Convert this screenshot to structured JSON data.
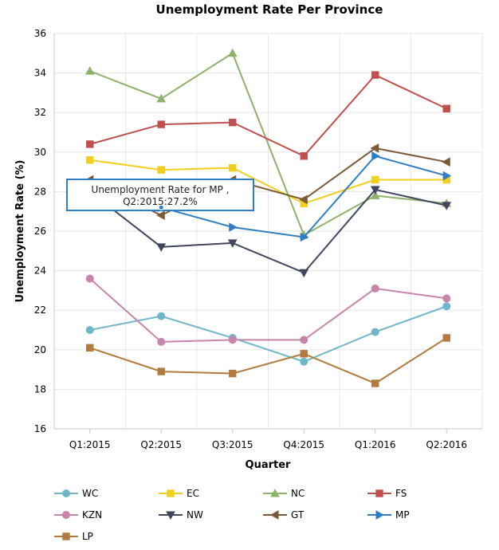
{
  "chart_data": {
    "type": "line",
    "title": "Unemployment Rate Per Province",
    "xlabel": "Quarter",
    "ylabel": "Unemployment Rate (%)",
    "categories": [
      "Q1:2015",
      "Q2:2015",
      "Q3:2015",
      "Q4:2015",
      "Q1:2016",
      "Q2:2016"
    ],
    "ylim": [
      16,
      36
    ],
    "yticks": [
      16,
      18,
      20,
      22,
      24,
      26,
      28,
      30,
      32,
      34,
      36
    ],
    "grid": true,
    "legend_position": "bottom",
    "series": [
      {
        "name": "WC",
        "color": "#6fb6c8",
        "marker": "circle",
        "values": [
          21.0,
          21.7,
          20.6,
          19.4,
          20.9,
          22.2
        ]
      },
      {
        "name": "EC",
        "color": "#f2cf1f",
        "marker": "square",
        "values": [
          29.6,
          29.1,
          29.2,
          27.4,
          28.6,
          28.6
        ]
      },
      {
        "name": "NC",
        "color": "#8fb26b",
        "marker": "triangle-up",
        "values": [
          34.1,
          32.7,
          35.0,
          25.8,
          27.8,
          27.4
        ]
      },
      {
        "name": "FS",
        "color": "#c0504d",
        "marker": "square",
        "values": [
          30.4,
          31.4,
          31.5,
          29.8,
          33.9,
          32.2
        ]
      },
      {
        "name": "KZN",
        "color": "#c785ab",
        "marker": "circle",
        "values": [
          23.6,
          20.4,
          20.5,
          20.5,
          23.1,
          22.6
        ]
      },
      {
        "name": "NW",
        "color": "#3f4660",
        "marker": "triangle-down",
        "values": [
          28.0,
          25.2,
          25.4,
          23.9,
          28.1,
          27.3
        ]
      },
      {
        "name": "GT",
        "color": "#7b5a36",
        "marker": "triangle-left",
        "values": [
          28.6,
          26.8,
          28.6,
          27.6,
          30.2,
          29.5
        ]
      },
      {
        "name": "MP",
        "color": "#2f7ec4",
        "marker": "triangle-right",
        "values": [
          28.4,
          27.2,
          26.2,
          25.7,
          29.8,
          28.8
        ]
      },
      {
        "name": "LP",
        "color": "#b27a3c",
        "marker": "square",
        "values": [
          20.1,
          18.9,
          18.8,
          19.8,
          18.3,
          20.6
        ]
      }
    ],
    "tooltip": {
      "line1": "Unemployment Rate for MP ,",
      "line2": "Q2:2015:27.2%"
    }
  }
}
